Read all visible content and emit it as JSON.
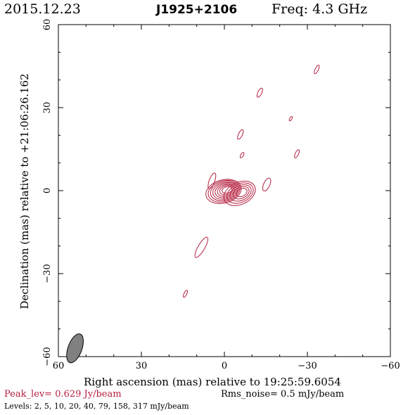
{
  "header": {
    "date": "2015.12.23",
    "source": "J1925+2106",
    "freq": "Freq: 4.3 GHz"
  },
  "footer": {
    "peak": "Peak_lev=  0.629 Jy/beam",
    "rms": "Rms_noise=   0.5 mJy/beam",
    "levels": "Levels:   2,    5,   10,   20,   40,   79,  158,  317  mJy/beam"
  },
  "colors": {
    "contour": "#b5203f",
    "beam": "#808080",
    "header_accent": "#b5203f"
  },
  "chart_data": {
    "type": "contour",
    "xlabel": "Right ascension (mas) relative to 19:25:59.6054",
    "ylabel": "Declination (mas) relative to +21:06:26.162",
    "xlim": [
      60,
      -60
    ],
    "ylim": [
      -60,
      60
    ],
    "xticks": [
      60,
      30,
      0,
      -30,
      -60
    ],
    "yticks": [
      -60,
      -30,
      0,
      30,
      60
    ],
    "xtick_labels": [
      "60",
      "30",
      "0",
      "−30",
      "−60"
    ],
    "ytick_labels": [
      "−60",
      "−30",
      "0",
      "30",
      "60"
    ],
    "levels_mjy": [
      2,
      5,
      10,
      20,
      40,
      79,
      158,
      317
    ],
    "beam": {
      "x": 54,
      "y": -57,
      "major": 5.5,
      "minor": 2.5,
      "pa_deg": 20
    },
    "core_components": [
      {
        "x": 0.3,
        "y": -0.3,
        "a": 6.5,
        "b": 4.2,
        "angle": 15,
        "levels": 8
      },
      {
        "x": -5.5,
        "y": -1.0,
        "a": 6.0,
        "b": 4.0,
        "angle": 25,
        "levels": 5
      }
    ],
    "features": [
      {
        "x": 4.5,
        "y": 3.5,
        "a": 3.0,
        "b": 1.0,
        "angle": 70
      },
      {
        "x": -15.3,
        "y": 2.2,
        "a": 2.5,
        "b": 1.1,
        "angle": 65
      },
      {
        "x": 8.3,
        "y": -20.5,
        "a": 4.2,
        "b": 1.2,
        "angle": 60
      },
      {
        "x": 14.1,
        "y": -37.3,
        "a": 1.4,
        "b": 0.5,
        "angle": 65
      },
      {
        "x": -5.8,
        "y": 20.3,
        "a": 1.9,
        "b": 0.7,
        "angle": 65
      },
      {
        "x": -6.4,
        "y": 12.8,
        "a": 1.1,
        "b": 0.5,
        "angle": 60
      },
      {
        "x": -12.8,
        "y": 35.4,
        "a": 1.8,
        "b": 0.7,
        "angle": 65
      },
      {
        "x": -24.0,
        "y": 26.0,
        "a": 0.9,
        "b": 0.4,
        "angle": 60
      },
      {
        "x": -26.2,
        "y": 13.3,
        "a": 1.6,
        "b": 0.6,
        "angle": 65
      },
      {
        "x": -33.4,
        "y": 43.8,
        "a": 1.7,
        "b": 0.6,
        "angle": 65
      }
    ]
  }
}
